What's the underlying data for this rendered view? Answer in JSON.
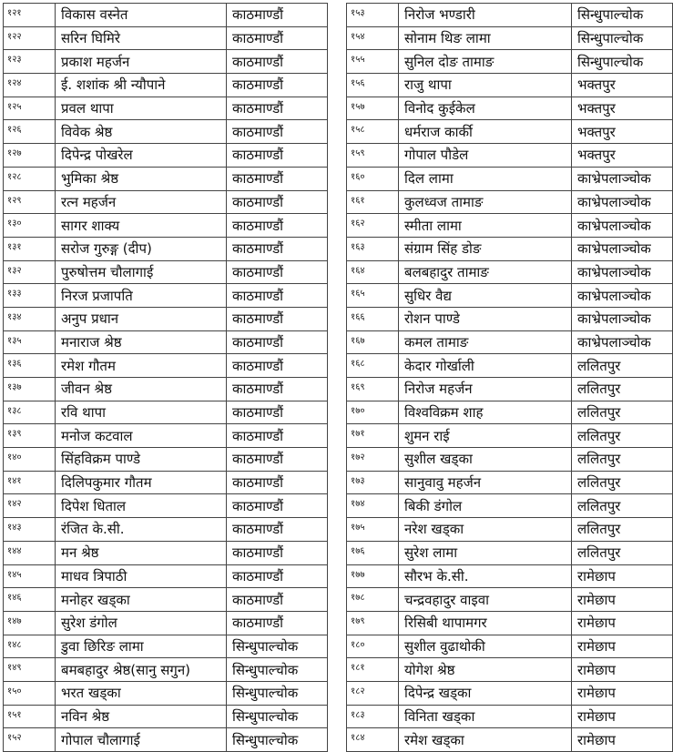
{
  "tables": [
    {
      "rows": [
        [
          "१२१",
          "विकास वस्नेत",
          "काठमाण्डौं"
        ],
        [
          "१२२",
          "सरिन घिमिरे",
          "काठमाण्डौं"
        ],
        [
          "१२३",
          "प्रकाश महर्जन",
          "काठमाण्डौं"
        ],
        [
          "१२४",
          "ई. शशांक श्री न्यौपाने",
          "काठमाण्डौं"
        ],
        [
          "१२५",
          "प्रवल थापा",
          "काठमाण्डौं"
        ],
        [
          "१२६",
          "विवेक श्रेष्ठ",
          "काठमाण्डौं"
        ],
        [
          "१२७",
          "दिपेन्द्र पोखरेल",
          "काठमाण्डौं"
        ],
        [
          "१२८",
          "भुमिका श्रेष्ठ",
          "काठमाण्डौं"
        ],
        [
          "१२९",
          "रत्न महर्जन",
          "काठमाण्डौं"
        ],
        [
          "१३०",
          "सागर शाक्य",
          "काठमाण्डौं"
        ],
        [
          "१३१",
          "सरोज गुरुङ्ग (दीप)",
          "काठमाण्डौं"
        ],
        [
          "१३२",
          "पुरुषोत्तम चौलागाई",
          "काठमाण्डौं"
        ],
        [
          "१३३",
          "निरज प्रजापति",
          "काठमाण्डौं"
        ],
        [
          "१३४",
          "अनुप प्रधान",
          "काठमाण्डौं"
        ],
        [
          "१३५",
          "मनाराज श्रेष्ठ",
          "काठमाण्डौं"
        ],
        [
          "१३६",
          "रमेश गौतम",
          "काठमाण्डौं"
        ],
        [
          "१३७",
          "जीवन श्रेष्ठ",
          "काठमाण्डौं"
        ],
        [
          "१३८",
          "रवि थापा",
          "काठमाण्डौं"
        ],
        [
          "१३९",
          "मनोज कटवाल",
          "काठमाण्डौं"
        ],
        [
          "१४०",
          "सिंहविक्रम पाण्डे",
          "काठमाण्डौं"
        ],
        [
          "१४१",
          "दिलिपकुमार गौतम",
          "काठमाण्डौं"
        ],
        [
          "१४२",
          "दिपेश धिताल",
          "काठमाण्डौं"
        ],
        [
          "१४३",
          "रंजित के.सी.",
          "काठमाण्डौं"
        ],
        [
          "१४४",
          "मन श्रेष्ठ",
          "काठमाण्डौं"
        ],
        [
          "१४५",
          "माधव त्रिपाठी",
          "काठमाण्डौं"
        ],
        [
          "१४६",
          "मनोहर खड्का",
          "काठमाण्डौं"
        ],
        [
          "१४७",
          "सुरेश डंगोल",
          "काठमाण्डौं"
        ],
        [
          "१४८",
          "डुवा छिरिङ लामा",
          "सिन्धुपाल्चोक"
        ],
        [
          "१४९",
          "बमबहादुर श्रेष्ठ(सानु सगुन)",
          "सिन्धुपाल्चोक"
        ],
        [
          "१५०",
          "भरत खड्का",
          "सिन्धुपाल्चोक"
        ],
        [
          "१५१",
          "नविन श्रेष्ठ",
          "सिन्धुपाल्चोक"
        ],
        [
          "१५२",
          "गोपाल चौलागाई",
          "सिन्धुपाल्चोक"
        ]
      ]
    },
    {
      "rows": [
        [
          "१५३",
          "निरोज भण्डारी",
          "सिन्धुपाल्चोक"
        ],
        [
          "१५४",
          "सोनाम थिङ लामा",
          "सिन्धुपाल्चोक"
        ],
        [
          "१५५",
          "सुनिल दोङ तामाङ",
          "सिन्धुपाल्चोक"
        ],
        [
          "१५६",
          "राजु थापा",
          "भक्तपुर"
        ],
        [
          "१५७",
          "विनोद कुईकेल",
          "भक्तपुर"
        ],
        [
          "१५८",
          "धर्मराज कार्की",
          "भक्तपुर"
        ],
        [
          "१५९",
          "गोपाल पौडेल",
          "भक्तपुर"
        ],
        [
          "१६०",
          "दिल लामा",
          "काभ्रेपलाञ्चोक"
        ],
        [
          "१६१",
          "कुलध्वज तामाङ",
          "काभ्रेपलाञ्चोक"
        ],
        [
          "१६२",
          "स्मीता लामा",
          "काभ्रेपलाञ्चोक"
        ],
        [
          "१६३",
          "संग्राम सिंह डोङ",
          "काभ्रेपलाञ्चोक"
        ],
        [
          "१६४",
          "बलबहादुर तामाङ",
          "काभ्रेपलाञ्चोक"
        ],
        [
          "१६५",
          "सुधिर वैद्य",
          "काभ्रेपलाञ्चोक"
        ],
        [
          "१६६",
          "रोशन पाण्डे",
          "काभ्रेपलाञ्चोक"
        ],
        [
          "१६७",
          "कमल तामाङ",
          "काभ्रेपलाञ्चोक"
        ],
        [
          "१६८",
          "केदार गोर्खाली",
          "ललितपुर"
        ],
        [
          "१६९",
          "निरोज महर्जन",
          "ललितपुर"
        ],
        [
          "१७०",
          "विश्वविक्रम शाह",
          "ललितपुर"
        ],
        [
          "१७१",
          "शुमन राई",
          "ललितपुर"
        ],
        [
          "१७२",
          "सुशील खड्का",
          "ललितपुर"
        ],
        [
          "१७३",
          "सानुवावु महर्जन",
          "ललितपुर"
        ],
        [
          "१७४",
          "बिकी डंगोल",
          "ललितपुर"
        ],
        [
          "१७५",
          "नरेश खड्का",
          "ललितपुर"
        ],
        [
          "१७६",
          "सुरेश लामा",
          "ललितपुर"
        ],
        [
          "१७७",
          "सौरभ के.सी.",
          "रामेछाप"
        ],
        [
          "१७८",
          "चन्द्रवहादुर वाइवा",
          "रामेछाप"
        ],
        [
          "१७९",
          "रिसिबी थापामगर",
          "रामेछाप"
        ],
        [
          "१८०",
          "सुशील वुढाथोकी",
          "रामेछाप"
        ],
        [
          "१८१",
          "योगेश श्रेष्ठ",
          "रामेछाप"
        ],
        [
          "१८२",
          "दिपेन्द्र खड्का",
          "रामेछाप"
        ],
        [
          "१८३",
          "विनिता खड्का",
          "रामेछाप"
        ],
        [
          "१८४",
          "रमेश खड्का",
          "रामेछाप"
        ]
      ]
    }
  ]
}
